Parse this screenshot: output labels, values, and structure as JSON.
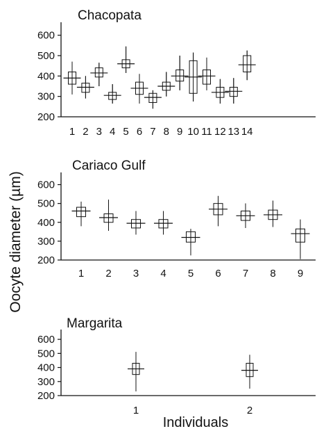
{
  "figure": {
    "ylabel": "Oocyte diameter (µm)",
    "xlabel": "Individuals"
  },
  "chart_data": [
    {
      "type": "boxplot",
      "title": "Chacopata",
      "ylim": [
        200,
        650
      ],
      "yticks": [
        200,
        300,
        400,
        500,
        600
      ],
      "categories": [
        "1",
        "2",
        "3",
        "4",
        "5",
        "6",
        "7",
        "8",
        "9",
        "10",
        "11",
        "12",
        "13",
        "14"
      ],
      "boxes": [
        {
          "median": 390,
          "q1": 360,
          "q3": 420,
          "min": 310,
          "max": 470
        },
        {
          "median": 345,
          "q1": 320,
          "q3": 365,
          "min": 290,
          "max": 400
        },
        {
          "median": 415,
          "q1": 395,
          "q3": 440,
          "min": 350,
          "max": 465
        },
        {
          "median": 305,
          "q1": 285,
          "q3": 320,
          "min": 265,
          "max": 360
        },
        {
          "median": 460,
          "q1": 440,
          "q3": 480,
          "min": 415,
          "max": 545
        },
        {
          "median": 340,
          "q1": 310,
          "q3": 370,
          "min": 265,
          "max": 410
        },
        {
          "median": 295,
          "q1": 270,
          "q3": 315,
          "min": 240,
          "max": 330
        },
        {
          "median": 350,
          "q1": 330,
          "q3": 370,
          "min": 300,
          "max": 420
        },
        {
          "median": 400,
          "q1": 375,
          "q3": 430,
          "min": 330,
          "max": 500
        },
        {
          "median": 395,
          "q1": 315,
          "q3": 475,
          "min": 275,
          "max": 515
        },
        {
          "median": 400,
          "q1": 360,
          "q3": 430,
          "min": 330,
          "max": 490
        },
        {
          "median": 320,
          "q1": 295,
          "q3": 345,
          "min": 265,
          "max": 385
        },
        {
          "median": 325,
          "q1": 300,
          "q3": 345,
          "min": 265,
          "max": 390
        },
        {
          "median": 455,
          "q1": 420,
          "q3": 500,
          "min": 380,
          "max": 525
        }
      ]
    },
    {
      "type": "boxplot",
      "title": "Cariaco Gulf",
      "ylim": [
        200,
        650
      ],
      "yticks": [
        200,
        300,
        400,
        500,
        600
      ],
      "categories": [
        "1",
        "2",
        "3",
        "4",
        "5",
        "6",
        "7",
        "8",
        "9"
      ],
      "boxes": [
        {
          "median": 460,
          "q1": 430,
          "q3": 480,
          "min": 380,
          "max": 510
        },
        {
          "median": 425,
          "q1": 400,
          "q3": 445,
          "min": 355,
          "max": 520
        },
        {
          "median": 395,
          "q1": 370,
          "q3": 415,
          "min": 335,
          "max": 460
        },
        {
          "median": 395,
          "q1": 370,
          "q3": 415,
          "min": 335,
          "max": 460
        },
        {
          "median": 320,
          "q1": 295,
          "q3": 350,
          "min": 225,
          "max": 365
        },
        {
          "median": 470,
          "q1": 440,
          "q3": 500,
          "min": 380,
          "max": 540
        },
        {
          "median": 435,
          "q1": 410,
          "q3": 460,
          "min": 370,
          "max": 500
        },
        {
          "median": 440,
          "q1": 415,
          "q3": 465,
          "min": 375,
          "max": 515
        },
        {
          "median": 340,
          "q1": 295,
          "q3": 365,
          "min": 205,
          "max": 415
        }
      ]
    },
    {
      "type": "boxplot",
      "title": "Margarita",
      "ylim": [
        200,
        650
      ],
      "yticks": [
        200,
        300,
        400,
        500,
        600
      ],
      "categories": [
        "1",
        "2"
      ],
      "boxes": [
        {
          "median": 390,
          "q1": 350,
          "q3": 430,
          "min": 230,
          "max": 510
        },
        {
          "median": 380,
          "q1": 335,
          "q3": 430,
          "min": 250,
          "max": 490
        }
      ]
    }
  ]
}
